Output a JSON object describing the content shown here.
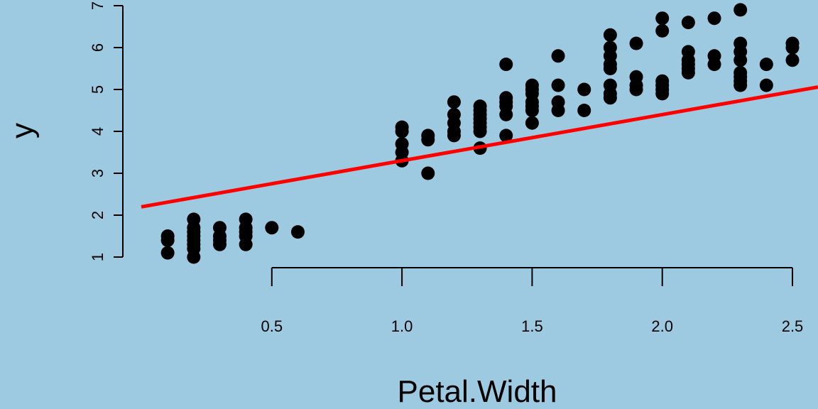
{
  "chart_data": {
    "type": "scatter",
    "title": "",
    "xlabel": "Petal.Width",
    "ylabel": "y",
    "xlim": [
      0.0,
      2.6
    ],
    "ylim": [
      0.8,
      7.2
    ],
    "x_ticks": [
      0.5,
      1.0,
      1.5,
      2.0,
      2.5
    ],
    "x_tick_labels": [
      "0.5",
      "1.0",
      "1.5",
      "2.0",
      "2.5"
    ],
    "y_ticks": [
      1,
      2,
      3,
      4,
      5,
      6,
      7
    ],
    "y_tick_labels": [
      "1",
      "2",
      "3",
      "4",
      "5",
      "6",
      "7"
    ],
    "grid": false,
    "background_color": "#9ecae1",
    "point_color": "#000000",
    "line_color": "#ff0000",
    "points": [
      [
        0.1,
        1.1
      ],
      [
        0.1,
        1.4
      ],
      [
        0.1,
        1.5
      ],
      [
        0.2,
        1.0
      ],
      [
        0.2,
        1.2
      ],
      [
        0.2,
        1.3
      ],
      [
        0.2,
        1.4
      ],
      [
        0.2,
        1.5
      ],
      [
        0.2,
        1.6
      ],
      [
        0.2,
        1.7
      ],
      [
        0.2,
        1.9
      ],
      [
        0.3,
        1.3
      ],
      [
        0.3,
        1.4
      ],
      [
        0.3,
        1.5
      ],
      [
        0.3,
        1.7
      ],
      [
        0.4,
        1.3
      ],
      [
        0.4,
        1.5
      ],
      [
        0.4,
        1.6
      ],
      [
        0.4,
        1.7
      ],
      [
        0.4,
        1.9
      ],
      [
        0.5,
        1.7
      ],
      [
        0.6,
        1.6
      ],
      [
        1.0,
        3.3
      ],
      [
        1.0,
        3.5
      ],
      [
        1.0,
        3.7
      ],
      [
        1.0,
        4.0
      ],
      [
        1.0,
        4.1
      ],
      [
        1.1,
        3.0
      ],
      [
        1.1,
        3.8
      ],
      [
        1.1,
        3.9
      ],
      [
        1.2,
        3.9
      ],
      [
        1.2,
        4.0
      ],
      [
        1.2,
        4.2
      ],
      [
        1.2,
        4.4
      ],
      [
        1.2,
        4.7
      ],
      [
        1.3,
        3.6
      ],
      [
        1.3,
        4.0
      ],
      [
        1.3,
        4.1
      ],
      [
        1.3,
        4.2
      ],
      [
        1.3,
        4.3
      ],
      [
        1.3,
        4.4
      ],
      [
        1.3,
        4.5
      ],
      [
        1.3,
        4.6
      ],
      [
        1.4,
        3.9
      ],
      [
        1.4,
        4.4
      ],
      [
        1.4,
        4.6
      ],
      [
        1.4,
        4.7
      ],
      [
        1.4,
        4.8
      ],
      [
        1.4,
        5.6
      ],
      [
        1.5,
        4.2
      ],
      [
        1.5,
        4.5
      ],
      [
        1.5,
        4.6
      ],
      [
        1.5,
        4.7
      ],
      [
        1.5,
        4.9
      ],
      [
        1.5,
        5.0
      ],
      [
        1.5,
        5.1
      ],
      [
        1.6,
        4.5
      ],
      [
        1.6,
        4.7
      ],
      [
        1.6,
        5.1
      ],
      [
        1.6,
        5.8
      ],
      [
        1.7,
        4.5
      ],
      [
        1.7,
        5.0
      ],
      [
        1.8,
        4.8
      ],
      [
        1.8,
        4.9
      ],
      [
        1.8,
        5.1
      ],
      [
        1.8,
        5.5
      ],
      [
        1.8,
        5.6
      ],
      [
        1.8,
        5.8
      ],
      [
        1.8,
        6.0
      ],
      [
        1.8,
        6.3
      ],
      [
        1.9,
        5.0
      ],
      [
        1.9,
        5.1
      ],
      [
        1.9,
        5.3
      ],
      [
        1.9,
        6.1
      ],
      [
        2.0,
        4.9
      ],
      [
        2.0,
        5.0
      ],
      [
        2.0,
        5.1
      ],
      [
        2.0,
        5.2
      ],
      [
        2.0,
        6.4
      ],
      [
        2.0,
        6.7
      ],
      [
        2.1,
        5.4
      ],
      [
        2.1,
        5.5
      ],
      [
        2.1,
        5.6
      ],
      [
        2.1,
        5.7
      ],
      [
        2.1,
        5.9
      ],
      [
        2.1,
        6.6
      ],
      [
        2.2,
        5.6
      ],
      [
        2.2,
        5.8
      ],
      [
        2.2,
        6.7
      ],
      [
        2.3,
        5.1
      ],
      [
        2.3,
        5.2
      ],
      [
        2.3,
        5.3
      ],
      [
        2.3,
        5.4
      ],
      [
        2.3,
        5.7
      ],
      [
        2.3,
        5.9
      ],
      [
        2.3,
        6.1
      ],
      [
        2.3,
        6.9
      ],
      [
        2.4,
        5.1
      ],
      [
        2.4,
        5.6
      ],
      [
        2.5,
        5.7
      ],
      [
        2.5,
        6.0
      ],
      [
        2.5,
        6.1
      ]
    ],
    "fit_line": {
      "intercept": 2.2,
      "slope": 1.1
    }
  }
}
